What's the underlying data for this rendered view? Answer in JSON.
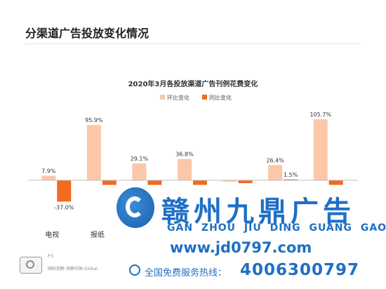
{
  "page_title": "分渠道广告投放变化情况",
  "chart_data": {
    "type": "bar",
    "title": "2020年3月各投放渠道广告刊例花费变化",
    "xlabel": "",
    "ylabel": "",
    "legend_position": "top",
    "categories": [
      "电视",
      "报纸",
      "",
      "",
      "",
      "",
      ""
    ],
    "series": [
      {
        "name": "环比变化",
        "color": "#fbc7a8",
        "values": [
          7.9,
          95.9,
          29.1,
          36.8,
          -2.5,
          26.4,
          105.7
        ],
        "labels": [
          "7.9%",
          "95.9%",
          "29.1%",
          "36.8%",
          "",
          "26.4%",
          "105.7%"
        ]
      },
      {
        "name": "同比变化",
        "color": "#f26a1b",
        "values": [
          -37.0,
          -8,
          -8,
          -8,
          -5,
          1.5,
          -8
        ],
        "labels": [
          "-37.0%",
          "",
          "",
          "",
          "",
          "1.5%",
          ""
        ]
      }
    ],
    "ylim": [
      -48,
      118
    ],
    "grid": false
  },
  "footer": {
    "page": "P.5",
    "text": "国际视野  洞察中国  Global"
  },
  "watermark": {
    "name_cn": "赣州九鼎广告",
    "pinyin": "GAN ZHOU JIU DING GUANG GAO",
    "url": "www.jd0797.com",
    "hotline_label": "全国免费服务热线：",
    "hotline_number": "4006300797",
    "color": "#1f6fc4"
  }
}
